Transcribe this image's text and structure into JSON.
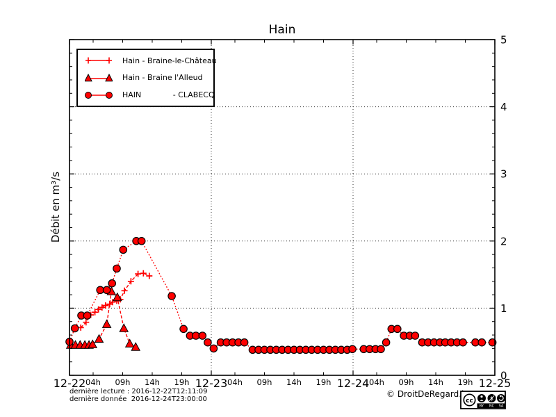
{
  "chart_data": {
    "type": "line",
    "title": "Hain",
    "xlabel": "",
    "ylabel": "Débit en m³/s",
    "ylim": [
      0,
      5
    ],
    "x_range_hours": [
      0,
      72
    ],
    "grid": {
      "style": "dotted",
      "horizontal_at": [
        1,
        2,
        3,
        4
      ],
      "vertical_at_hours": [
        24,
        48
      ]
    },
    "y_ticks": [
      0,
      1,
      2,
      3,
      4,
      5
    ],
    "y_minor_step": 0.2,
    "x_major_ticks": [
      {
        "t": 0,
        "label": "12-22"
      },
      {
        "t": 24,
        "label": "12-23"
      },
      {
        "t": 48,
        "label": "12-24"
      },
      {
        "t": 72,
        "label": "12-25"
      }
    ],
    "x_minor_ticks": [
      {
        "t": 4,
        "label": "04h"
      },
      {
        "t": 9,
        "label": "09h"
      },
      {
        "t": 14,
        "label": "14h"
      },
      {
        "t": 19,
        "label": "19h"
      },
      {
        "t": 28,
        "label": "04h"
      },
      {
        "t": 33,
        "label": "09h"
      },
      {
        "t": 38,
        "label": "14h"
      },
      {
        "t": 43,
        "label": "19h"
      },
      {
        "t": 52,
        "label": "04h"
      },
      {
        "t": 57,
        "label": "09h"
      },
      {
        "t": 62,
        "label": "14h"
      },
      {
        "t": 67,
        "label": "19h"
      }
    ],
    "legend_position": "upper-left",
    "series": [
      {
        "name": "Hain - Braine-le-Château",
        "marker": "plus",
        "linestyle": "dashed",
        "color": "#ff0000",
        "marker_edge": "#ff0000",
        "points": [
          [
            1.9,
            0.71
          ],
          [
            2.8,
            0.79
          ],
          [
            3.6,
            0.9
          ],
          [
            4.3,
            0.94
          ],
          [
            4.9,
            0.98
          ],
          [
            5.5,
            1.01
          ],
          [
            6.1,
            1.04
          ],
          [
            6.8,
            1.06
          ],
          [
            7.3,
            1.09
          ],
          [
            8.0,
            1.11
          ],
          [
            8.6,
            1.13
          ],
          [
            9.3,
            1.26
          ],
          [
            10.4,
            1.4
          ],
          [
            11.6,
            1.51
          ],
          [
            12.5,
            1.52
          ],
          [
            13.5,
            1.48
          ]
        ]
      },
      {
        "name": "Hain - Braine l'Alleud",
        "marker": "triangle",
        "linestyle": "dashed",
        "color": "#ff0000",
        "marker_edge": "#000000",
        "points": [
          [
            0.2,
            0.45
          ],
          [
            1.0,
            0.45
          ],
          [
            1.8,
            0.45
          ],
          [
            2.6,
            0.45
          ],
          [
            3.3,
            0.45
          ],
          [
            3.9,
            0.46
          ],
          [
            5.0,
            0.54
          ],
          [
            6.3,
            0.76
          ],
          [
            7.1,
            1.25
          ],
          [
            8.1,
            1.16
          ],
          [
            9.2,
            0.7
          ],
          [
            10.2,
            0.47
          ],
          [
            11.2,
            0.42
          ]
        ]
      },
      {
        "name": "HAIN             - CLABECQ",
        "marker": "circle",
        "linestyle": "dotted",
        "color": "#ff0000",
        "marker_edge": "#000000",
        "points": [
          [
            0,
            0.5
          ],
          [
            0.9,
            0.7
          ],
          [
            2.0,
            0.89
          ],
          [
            3.0,
            0.89
          ],
          [
            5.2,
            1.27
          ],
          [
            6.3,
            1.27
          ],
          [
            7.2,
            1.37
          ],
          [
            8.0,
            1.59
          ],
          [
            9.1,
            1.87
          ],
          [
            11.3,
            2.0
          ],
          [
            12.2,
            2.0
          ],
          [
            17.3,
            1.18
          ],
          [
            19.3,
            0.69
          ],
          [
            20.4,
            0.59
          ],
          [
            21.4,
            0.59
          ],
          [
            22.5,
            0.59
          ],
          [
            23.4,
            0.49
          ],
          [
            24.4,
            0.4
          ],
          [
            25.6,
            0.49
          ],
          [
            26.6,
            0.49
          ],
          [
            27.6,
            0.49
          ],
          [
            28.6,
            0.49
          ],
          [
            29.6,
            0.49
          ],
          [
            31.0,
            0.38
          ],
          [
            32.0,
            0.38
          ],
          [
            33.0,
            0.38
          ],
          [
            34.0,
            0.38
          ],
          [
            35.0,
            0.38
          ],
          [
            36.0,
            0.38
          ],
          [
            37.0,
            0.38
          ],
          [
            38.0,
            0.38
          ],
          [
            39.0,
            0.38
          ],
          [
            40.0,
            0.38
          ],
          [
            41.0,
            0.38
          ],
          [
            42.0,
            0.38
          ],
          [
            43.0,
            0.38
          ],
          [
            44.0,
            0.38
          ],
          [
            45.0,
            0.38
          ],
          [
            46.0,
            0.38
          ],
          [
            47.0,
            0.38
          ],
          [
            47.9,
            0.39
          ],
          [
            49.8,
            0.39
          ],
          [
            50.8,
            0.39
          ],
          [
            51.8,
            0.39
          ],
          [
            52.7,
            0.39
          ],
          [
            53.6,
            0.49
          ],
          [
            54.5,
            0.69
          ],
          [
            55.5,
            0.69
          ],
          [
            56.6,
            0.59
          ],
          [
            57.6,
            0.59
          ],
          [
            58.5,
            0.59
          ],
          [
            59.7,
            0.49
          ],
          [
            60.7,
            0.49
          ],
          [
            61.7,
            0.49
          ],
          [
            62.7,
            0.49
          ],
          [
            63.6,
            0.49
          ],
          [
            64.6,
            0.49
          ],
          [
            65.6,
            0.49
          ],
          [
            66.6,
            0.49
          ],
          [
            68.7,
            0.49
          ],
          [
            69.8,
            0.49
          ],
          [
            71.6,
            0.49
          ]
        ]
      }
    ]
  },
  "footer": {
    "last_reading": "dernière lecture : 2016-12-22T12:11:09",
    "last_data": "dernière donnée  2016-12-24T23:00:00",
    "copyright": "© DroitDeRegard.be",
    "license": {
      "cc": "cc",
      "nc_symbol": "$",
      "by": "BY",
      "nc": "NC",
      "sa": "SA"
    }
  }
}
